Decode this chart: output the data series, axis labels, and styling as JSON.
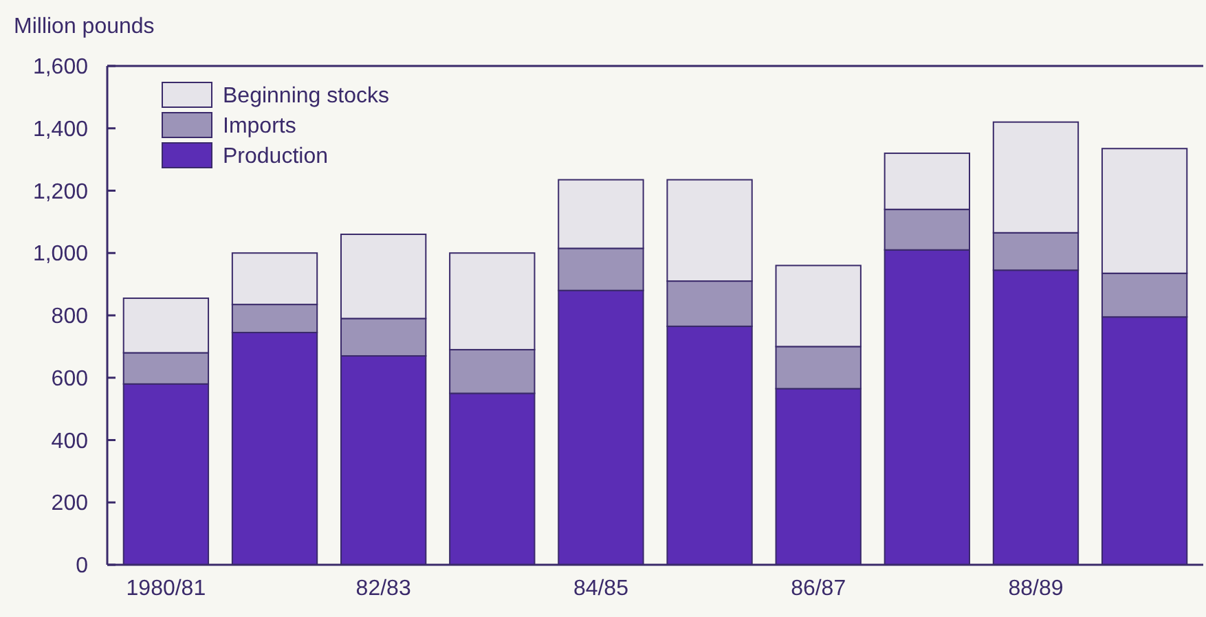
{
  "chart_data": {
    "type": "bar",
    "ylabel": "Million pounds",
    "stacked": true,
    "legend": "top left",
    "grid": false,
    "categories": [
      "1980/81",
      null,
      "82/83",
      null,
      "84/85",
      null,
      "86/87",
      null,
      "88/89",
      null
    ],
    "series": [
      {
        "name": "Production",
        "color": "#5b2db5",
        "values": [
          580,
          745,
          670,
          550,
          880,
          765,
          565,
          1010,
          945,
          795
        ]
      },
      {
        "name": "Imports",
        "color": "#9c94b8",
        "values": [
          100,
          90,
          120,
          140,
          135,
          145,
          135,
          130,
          120,
          140
        ]
      },
      {
        "name": "Beginning stocks",
        "color": "#e6e4ea",
        "values": [
          175,
          165,
          270,
          310,
          220,
          325,
          260,
          180,
          355,
          400
        ]
      }
    ],
    "ylim": [
      0,
      1600
    ],
    "yticks": [
      {
        "value": 0,
        "label": "0"
      },
      {
        "value": 200,
        "label": "200"
      },
      {
        "value": 400,
        "label": "400"
      },
      {
        "value": 600,
        "label": "600"
      },
      {
        "value": 800,
        "label": "800"
      },
      {
        "value": 1000,
        "label": "1,000"
      },
      {
        "value": 1200,
        "label": "1,200"
      },
      {
        "value": 1400,
        "label": "1,400"
      },
      {
        "value": 1600,
        "label": "1,600"
      }
    ]
  }
}
